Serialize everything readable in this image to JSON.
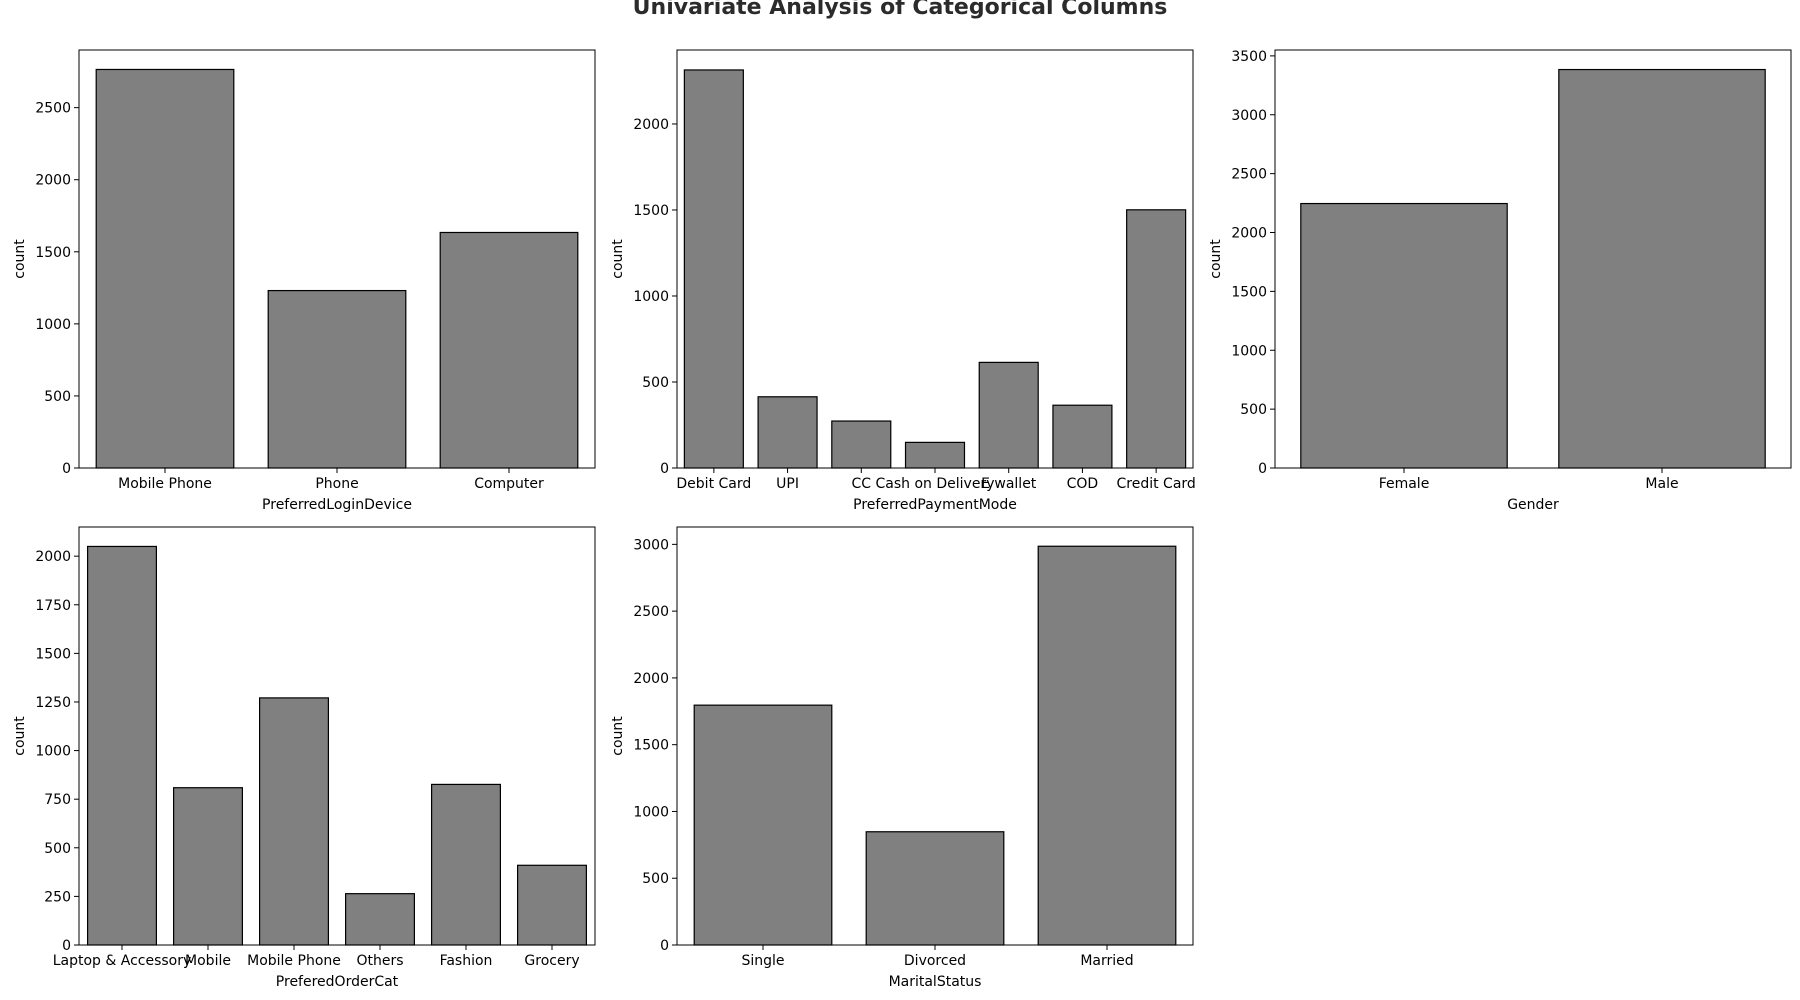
{
  "title": "Univariate Analysis of Categorical Columns",
  "bar_color": "#808080",
  "chart_data": [
    {
      "type": "bar",
      "xlabel": "PreferredLoginDevice",
      "ylabel": "count",
      "categories": [
        "Mobile Phone",
        "Phone",
        "Computer"
      ],
      "values": [
        2765,
        1231,
        1634
      ],
      "ylim": [
        0,
        2900
      ],
      "yticks": [
        0,
        500,
        1000,
        1500,
        2000,
        2500
      ]
    },
    {
      "type": "bar",
      "xlabel": "PreferredPaymentMode",
      "ylabel": "count",
      "categories": [
        "Debit Card",
        "UPI",
        "CC",
        "Cash on Delivery",
        "E wallet",
        "COD",
        "Credit Card"
      ],
      "values": [
        2314,
        414,
        273,
        149,
        614,
        365,
        1501
      ],
      "ylim": [
        0,
        2430
      ],
      "yticks": [
        0,
        500,
        1000,
        1500,
        2000
      ]
    },
    {
      "type": "bar",
      "xlabel": "Gender",
      "ylabel": "count",
      "categories": [
        "Female",
        "Male"
      ],
      "values": [
        2246,
        3384
      ],
      "ylim": [
        0,
        3550
      ],
      "yticks": [
        0,
        500,
        1000,
        1500,
        2000,
        2500,
        3000,
        3500
      ]
    },
    {
      "type": "bar",
      "xlabel": "PreferedOrderCat",
      "ylabel": "count",
      "categories": [
        "Laptop & Accessory",
        "Mobile",
        "Mobile Phone",
        "Others",
        "Fashion",
        "Grocery"
      ],
      "values": [
        2050,
        809,
        1271,
        264,
        826,
        410
      ],
      "ylim": [
        0,
        2150
      ],
      "yticks": [
        0,
        250,
        500,
        750,
        1000,
        1250,
        1500,
        1750,
        2000
      ]
    },
    {
      "type": "bar",
      "xlabel": "MaritalStatus",
      "ylabel": "count",
      "categories": [
        "Single",
        "Divorced",
        "Married"
      ],
      "values": [
        1796,
        848,
        2986
      ],
      "ylim": [
        0,
        3130
      ],
      "yticks": [
        0,
        500,
        1000,
        1500,
        2000,
        2500,
        3000
      ]
    }
  ]
}
